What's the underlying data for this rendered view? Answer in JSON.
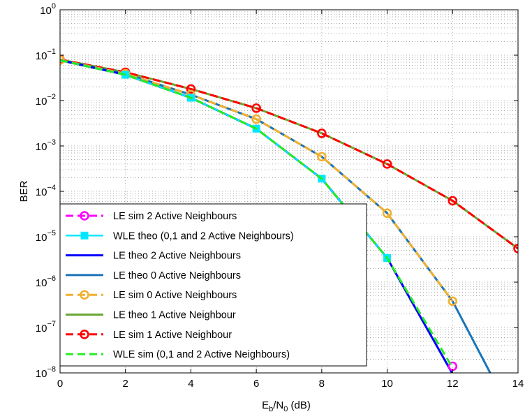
{
  "chart_data": {
    "type": "line",
    "title": "",
    "xlabel": {
      "main": "E",
      "sub1": "b",
      "mid": "/N",
      "sub2": "0",
      "tail": " (dB)"
    },
    "ylabel": "BER",
    "xlim": [
      0,
      14
    ],
    "ylim": [
      1e-08,
      1
    ],
    "yscale": "log",
    "grid": true,
    "legend_position": "lower-left",
    "x_ticks": [
      0,
      2,
      4,
      6,
      8,
      10,
      12,
      14
    ],
    "x_tick_labels": [
      "0",
      "2",
      "4",
      "6",
      "8",
      "10",
      "12",
      "14"
    ],
    "y_ticks": [
      {
        "value": 1,
        "base": "10",
        "exp": "0"
      },
      {
        "value": 0.1,
        "base": "10",
        "exp": "−1"
      },
      {
        "value": 0.01,
        "base": "10",
        "exp": "−2"
      },
      {
        "value": 0.001,
        "base": "10",
        "exp": "−3"
      },
      {
        "value": 0.0001,
        "base": "10",
        "exp": "−4"
      },
      {
        "value": 1e-05,
        "base": "10",
        "exp": "−5"
      },
      {
        "value": 1e-06,
        "base": "10",
        "exp": "−6"
      },
      {
        "value": 1e-07,
        "base": "10",
        "exp": "−7"
      },
      {
        "value": 1e-08,
        "base": "10",
        "exp": "−8"
      }
    ],
    "series": [
      {
        "name": "LE theo 1 Active Neighbour",
        "color": "#66a832",
        "dash": "none",
        "marker": "none",
        "width": 3,
        "x": [
          0,
          2,
          4,
          6,
          8,
          10,
          12,
          14
        ],
        "y": [
          0.08,
          0.042,
          0.018,
          0.0068,
          0.0019,
          0.0004,
          6.2e-05,
          5.5e-06
        ]
      },
      {
        "name": "LE sim 1 Active Neighbour",
        "color": "#ff0000",
        "dash": "dash",
        "marker": "circle",
        "width": 3,
        "x": [
          0,
          2,
          4,
          6,
          8,
          10,
          12,
          14
        ],
        "y": [
          0.08,
          0.042,
          0.018,
          0.0068,
          0.0019,
          0.0004,
          6.2e-05,
          5.5e-06
        ]
      },
      {
        "name": "LE theo 0 Active Neighbours",
        "color": "#1a74b8",
        "dash": "none",
        "marker": "none",
        "width": 3,
        "x": [
          0,
          2,
          4,
          6,
          8,
          10,
          12,
          13.15
        ],
        "y": [
          0.078,
          0.039,
          0.0135,
          0.0039,
          0.00058,
          3.3e-05,
          3.8e-07,
          1e-08
        ]
      },
      {
        "name": "LE sim 0 Active Neighbours",
        "color": "#f0b030",
        "dash": "dash",
        "marker": "circle",
        "width": 3,
        "x": [
          0,
          2,
          4,
          6,
          8,
          10,
          12
        ],
        "y": [
          0.078,
          0.039,
          0.0135,
          0.0039,
          0.00058,
          3.3e-05,
          3.8e-07
        ]
      },
      {
        "name": "LE theo 2 Active Neighbours",
        "color": "#0000ff",
        "dash": "none",
        "marker": "none",
        "width": 3,
        "x": [
          0,
          2,
          4,
          6,
          8,
          10,
          12
        ],
        "y": [
          0.077,
          0.037,
          0.0115,
          0.0024,
          0.00019,
          3.4e-06,
          9.5e-09
        ]
      },
      {
        "name": "WLE theo (0,1 and 2 Active Neighbours)",
        "color": "#00e8ff",
        "dash": "none",
        "marker": "square",
        "width": 2.5,
        "x": [
          2,
          4,
          6,
          8,
          10
        ],
        "y": [
          0.037,
          0.0115,
          0.0024,
          0.00019,
          3.4e-06
        ]
      },
      {
        "name": "LE sim 2 Active Neighbours",
        "color": "#ff00ff",
        "dash": "dash",
        "marker": "circle",
        "width": 3,
        "x": [
          12
        ],
        "y": [
          1.4e-08
        ]
      },
      {
        "name": "WLE sim (0,1 and 2 Active Neighbours)",
        "color": "#22ee22",
        "dash": "dash",
        "marker": "none",
        "width": 3,
        "x": [
          0,
          2,
          4,
          6,
          8,
          10,
          12
        ],
        "y": [
          0.077,
          0.037,
          0.0115,
          0.0024,
          0.00019,
          3.4e-06,
          1.3e-08
        ]
      }
    ],
    "legend_order": [
      "LE sim 2 Active Neighbours",
      "WLE theo (0,1 and 2 Active Neighbours)",
      "LE theo 2 Active Neighbours",
      "LE theo 0 Active Neighbours",
      "LE sim 0 Active Neighbours",
      "LE theo 1 Active Neighbour",
      "LE sim 1 Active Neighbour",
      "WLE sim (0,1 and 2 Active Neighbours)"
    ]
  }
}
